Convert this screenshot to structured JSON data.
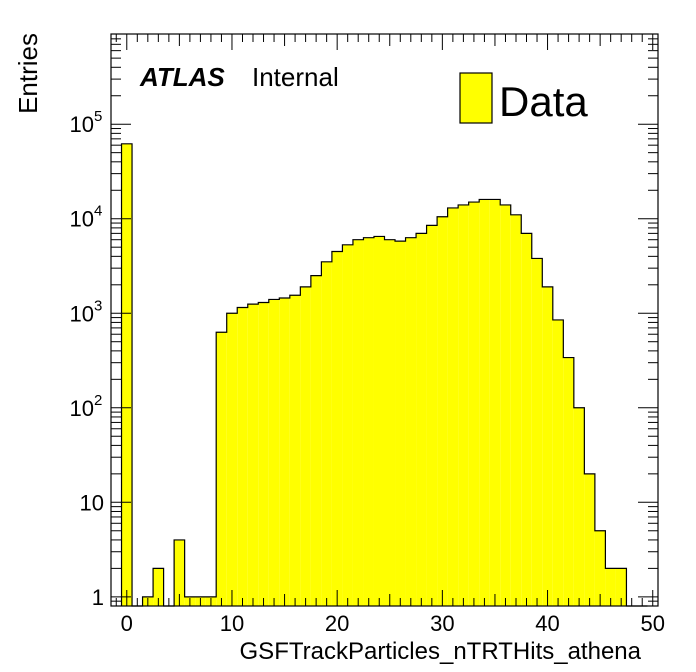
{
  "chart_data": {
    "type": "bar",
    "style": "histogram",
    "x_bin_width": 1,
    "x_bin_start": -0.5,
    "xlim": [
      -1.5,
      50.5
    ],
    "ylim": [
      0.8,
      900000
    ],
    "y_scale": "log",
    "grid": false,
    "xlabel": "GSFTrackParticles_nTRTHits_athena",
    "ylabel": "Entries",
    "x_ticks": [
      {
        "value": 0,
        "label": "0"
      },
      {
        "value": 10,
        "label": "10"
      },
      {
        "value": 20,
        "label": "20"
      },
      {
        "value": 30,
        "label": "30"
      },
      {
        "value": 40,
        "label": "40"
      },
      {
        "value": 50,
        "label": "50"
      }
    ],
    "y_ticks": [
      {
        "value": 1,
        "base": "1",
        "exp": ""
      },
      {
        "value": 10,
        "base": "10",
        "exp": ""
      },
      {
        "value": 100,
        "base": "10",
        "exp": "2"
      },
      {
        "value": 1000,
        "base": "10",
        "exp": "3"
      },
      {
        "value": 10000,
        "base": "10",
        "exp": "4"
      },
      {
        "value": 100000,
        "base": "10",
        "exp": "5"
      }
    ],
    "series": [
      {
        "name": "Data",
        "color": "#ffff00",
        "values": [
          62000,
          0,
          1,
          2,
          0,
          4,
          1,
          1,
          1,
          630,
          1000,
          1150,
          1250,
          1300,
          1400,
          1450,
          1550,
          1900,
          2500,
          3500,
          4500,
          5300,
          6000,
          6300,
          6500,
          6000,
          5800,
          6300,
          7000,
          8500,
          10500,
          13000,
          14000,
          15000,
          16000,
          16000,
          14000,
          11000,
          7000,
          3800,
          1900,
          850,
          340,
          100,
          20,
          5,
          2,
          2,
          0,
          0
        ]
      }
    ],
    "legend": {
      "position": "top-right",
      "entries": [
        "Data"
      ]
    },
    "annotation": {
      "experiment": "ATLAS",
      "status": "Internal"
    }
  }
}
